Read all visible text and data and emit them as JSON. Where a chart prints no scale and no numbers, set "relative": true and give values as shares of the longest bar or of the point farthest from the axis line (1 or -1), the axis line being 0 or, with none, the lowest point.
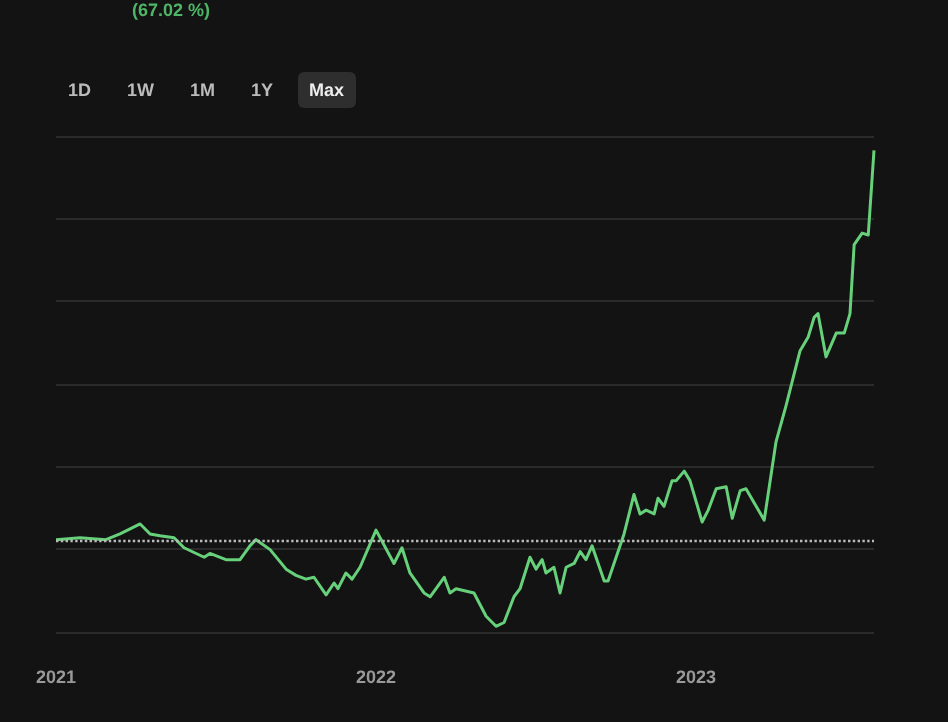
{
  "chart_data": {
    "type": "line",
    "relative": true,
    "annotations": [
      "(67.02 %)",
      "1D",
      "1W",
      "1M",
      "1Y",
      "Max"
    ],
    "x": [
      2021,
      2021.075,
      2021.156,
      2021.2,
      2021.263,
      2021.294,
      2021.325,
      2021.369,
      2021.4,
      2021.463,
      2021.481,
      2021.531,
      2021.575,
      2021.606,
      2021.625,
      2021.669,
      2021.719,
      2021.75,
      2021.781,
      2021.806,
      2021.844,
      2021.869,
      2021.881,
      2021.906,
      2021.925,
      2021.95,
      2022,
      2022.056,
      2022.081,
      2022.106,
      2022.15,
      2022.169,
      2022.213,
      2022.231,
      2022.25,
      2022.306,
      2022.344,
      2022.375,
      2022.4,
      2022.431,
      2022.45,
      2022.481,
      2022.5,
      2022.519,
      2022.531,
      2022.556,
      2022.575,
      2022.594,
      2022.619,
      2022.638,
      2022.656,
      2022.675,
      2022.713,
      2022.725,
      2022.775,
      2022.806,
      2022.825,
      2022.844,
      2022.869,
      2022.881,
      2022.9,
      2022.925,
      2022.938,
      2022.963,
      2022.981,
      2023.019,
      2023.038,
      2023.063,
      2023.094,
      2023.113,
      2023.138,
      2023.156,
      2023.213,
      2023.25,
      2023.281,
      2023.325,
      2023.35,
      2023.369,
      2023.381,
      2023.406,
      2023.438,
      2023.463,
      2023.481,
      2023.494,
      2023.519,
      2023.538,
      2023.556
    ],
    "series": [
      {
        "color": "#66d17a",
        "values": [
          0.182,
          0.186,
          0.182,
          0.194,
          0.215,
          0.194,
          0.19,
          0.186,
          0.165,
          0.145,
          0.153,
          0.14,
          0.14,
          0.169,
          0.182,
          0.161,
          0.12,
          0.107,
          0.099,
          0.103,
          0.066,
          0.091,
          0.079,
          0.112,
          0.099,
          0.124,
          0.202,
          0.132,
          0.165,
          0.112,
          0.07,
          0.062,
          0.103,
          0.07,
          0.079,
          0.07,
          0.021,
          0,
          0.008,
          0.062,
          0.079,
          0.145,
          0.12,
          0.14,
          0.112,
          0.124,
          0.07,
          0.124,
          0.132,
          0.157,
          0.14,
          0.169,
          0.095,
          0.095,
          0.194,
          0.277,
          0.236,
          0.244,
          0.236,
          0.269,
          0.252,
          0.306,
          0.306,
          0.326,
          0.306,
          0.219,
          0.244,
          0.289,
          0.293,
          0.227,
          0.285,
          0.289,
          0.223,
          0.388,
          0.463,
          0.579,
          0.607,
          0.649,
          0.657,
          0.566,
          0.616,
          0.616,
          0.657,
          0.802,
          0.826,
          0.822,
          1
        ]
      }
    ],
    "xlim": [
      2021,
      2023.556
    ],
    "xticks": [
      2021,
      2022,
      2023
    ],
    "ref_lines": [
      {
        "axis": "y",
        "value": 0.182,
        "color": "#bbbbbb",
        "line_style": "dotted"
      }
    ],
    "grid": "y",
    "marker": "none",
    "line_style": "solid",
    "tick_labels": "x"
  }
}
